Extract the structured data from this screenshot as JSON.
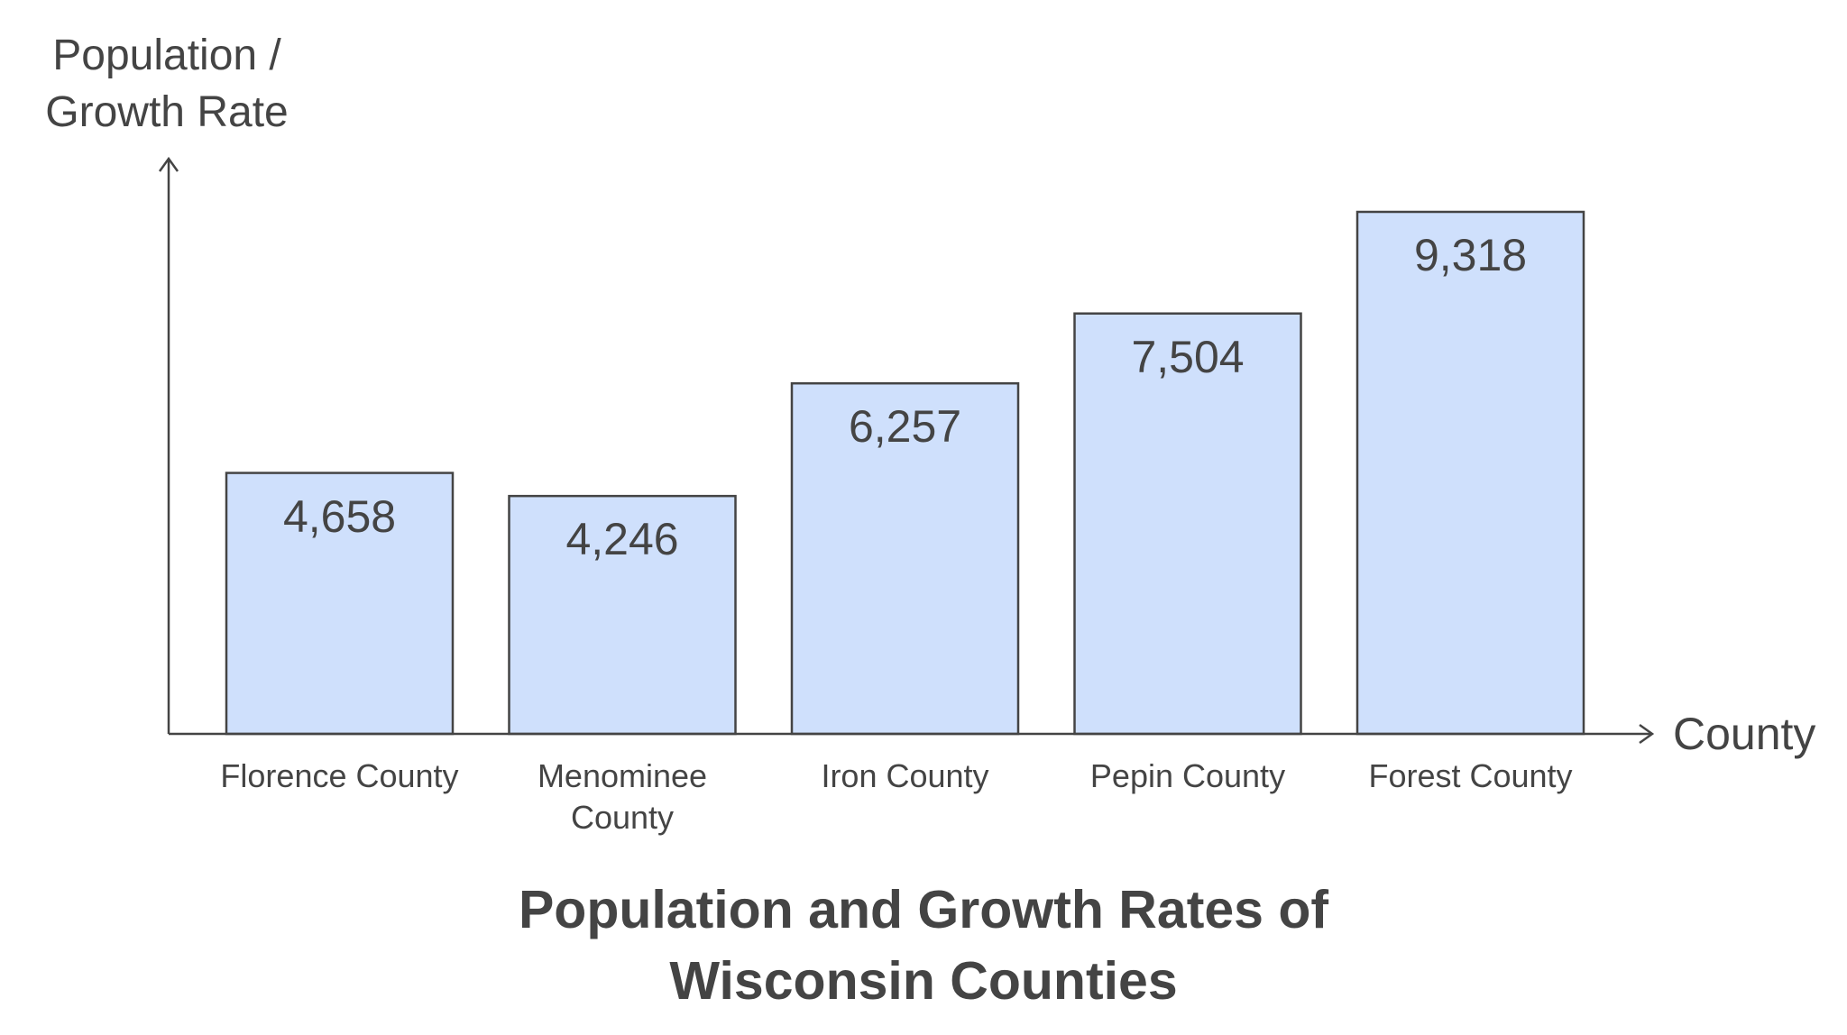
{
  "chart_data": {
    "type": "bar",
    "title": "Population and Growth Rates of Wisconsin Counties",
    "y_label": "Population / Growth Rate",
    "x_label": "County",
    "categories": [
      "Florence County",
      "Menominee County",
      "Iron County",
      "Pepin County",
      "Forest County"
    ],
    "values": [
      4658,
      4246,
      6257,
      7504,
      9318
    ],
    "value_labels": [
      "4,658",
      "4,246",
      "6,257",
      "7,504",
      "9,318"
    ],
    "color": "#cfe0fc"
  }
}
